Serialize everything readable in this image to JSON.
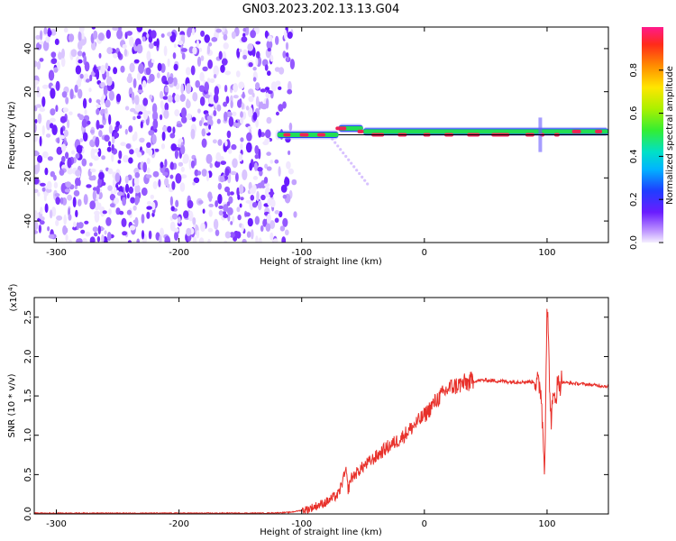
{
  "title": "GN03.2023.202.13.13.G04",
  "colors": {
    "snr_line": "#e8302a",
    "dots": "#7a2cf0",
    "tone_core": "#ee2255",
    "tone_edge": "#2244ff",
    "tone_mid": "#22dd55"
  },
  "chart_data": [
    {
      "type": "heatmap",
      "title": "GN03.2023.202.13.13.G04",
      "xlabel": "Height of straight line (km)",
      "ylabel": "Frequency (Hz)",
      "xlim": [
        -318,
        150
      ],
      "ylim": [
        -50,
        50
      ],
      "xticks": [
        -300,
        -200,
        -100,
        0,
        100
      ],
      "yticks": [
        -40,
        -20,
        0,
        20,
        40
      ],
      "noise_region_x": [
        -318,
        -105
      ],
      "tone_frequency_hz": 0,
      "tone_segments_x": [
        [
          -120,
          -70
        ],
        [
          -70,
          -50
        ],
        [
          -50,
          150
        ]
      ],
      "tone_offsets_hz": [
        0,
        3,
        1.5
      ],
      "colorbar": {
        "label": "Normalized spectral amplitude",
        "range": [
          0.0,
          1.0
        ],
        "ticks": [
          "0.0",
          "0.2",
          "0.4",
          "0.6",
          "0.8"
        ],
        "tick_values": [
          0.0,
          0.2,
          0.4,
          0.6,
          0.8
        ]
      }
    },
    {
      "type": "line",
      "xlabel": "Height of straight line (km)",
      "ylabel": "SNR (10 * v/v)",
      "multiplier": "(x10",
      "multiplier_exp": "4",
      "multiplier_close": ")",
      "xlim": [
        -318,
        150
      ],
      "ylim": [
        0.0,
        2.75
      ],
      "xticks": [
        -300,
        -200,
        -100,
        0,
        100
      ],
      "yticks": [
        "0.0",
        "0.5",
        "1.0",
        "1.5",
        "2.0",
        "2.5"
      ],
      "ytick_values": [
        0.0,
        0.5,
        1.0,
        1.5,
        2.0,
        2.5
      ],
      "series": [
        {
          "values_x": [
            -318,
            -280,
            -240,
            -200,
            -160,
            -130,
            -110,
            -95,
            -80,
            -70,
            -64,
            -62,
            -60,
            -50,
            -40,
            -30,
            -20,
            -10,
            0,
            10,
            20,
            30,
            40,
            50,
            60,
            70,
            80,
            90,
            95,
            98,
            100,
            103,
            106,
            110,
            120,
            130,
            150
          ],
          "values_y": [
            0.01,
            0.01,
            0.01,
            0.01,
            0.01,
            0.01,
            0.02,
            0.06,
            0.15,
            0.25,
            0.55,
            0.3,
            0.45,
            0.6,
            0.72,
            0.85,
            0.95,
            1.1,
            1.25,
            1.45,
            1.6,
            1.65,
            1.69,
            1.7,
            1.69,
            1.68,
            1.68,
            1.68,
            1.6,
            0.55,
            2.75,
            1.2,
            1.5,
            1.68,
            1.66,
            1.65,
            1.62
          ]
        }
      ]
    }
  ]
}
